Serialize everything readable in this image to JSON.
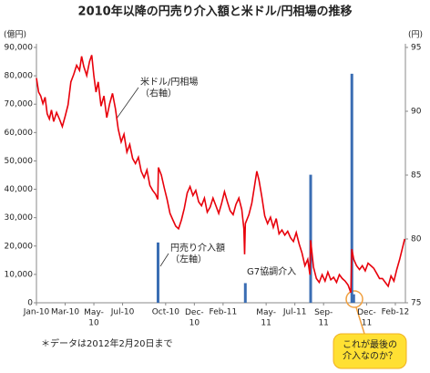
{
  "chart_data": {
    "type": "combo",
    "title": "2010年以降の円売り介入額と米ドル/円相場の推移",
    "y_label": "(億円)",
    "y2_label": "(円)",
    "xlim": [
      0,
      25.7
    ],
    "xticks": [
      {
        "value": 0,
        "label": "Jan-10"
      },
      {
        "value": 2,
        "label": "Mar-10"
      },
      {
        "value": 4,
        "label": "May-\n10"
      },
      {
        "value": 6,
        "label": "Jul-10"
      },
      {
        "value": 9,
        "label": "Oct-10"
      },
      {
        "value": 11,
        "label": "Dec-\n10"
      },
      {
        "value": 13,
        "label": "Feb-11"
      },
      {
        "value": 16,
        "label": "May-\n11"
      },
      {
        "value": 18,
        "label": "Jul-11"
      },
      {
        "value": 20,
        "label": "Sep-\n11"
      },
      {
        "value": 23,
        "label": "Dec-\n11"
      },
      {
        "value": 25,
        "label": "Feb-12"
      }
    ],
    "ylim": [
      0,
      90000
    ],
    "yticks": [
      0,
      {
        "value": 10000,
        "label": "10,000"
      },
      {
        "value": 20000,
        "label": "20,000"
      },
      {
        "value": 30000,
        "label": "30,000"
      },
      {
        "value": 40000,
        "label": "40,000"
      },
      {
        "value": 50000,
        "label": "50,000"
      },
      {
        "value": 60000,
        "label": "60,000"
      },
      {
        "value": 70000,
        "label": "70,000"
      },
      {
        "value": 80000,
        "label": "80,000"
      },
      {
        "value": 90000,
        "label": "90,000"
      }
    ],
    "y2lim": [
      75,
      95
    ],
    "y2ticks": [
      75,
      80,
      85,
      90,
      95
    ],
    "series": [
      {
        "type": "bar",
        "color": "#3a6db3",
        "x": [
          8.47,
          14.55,
          19.1,
          21.97,
          22.1
        ],
        "values": [
          21249,
          6925,
          45129,
          80722,
          3000
        ]
      },
      {
        "type": "line",
        "axis": "y2",
        "color": "#e8000b",
        "x": [
          0,
          0.15,
          0.3,
          0.45,
          0.6,
          0.75,
          0.9,
          1.05,
          1.2,
          1.4,
          1.6,
          1.8,
          2.0,
          2.2,
          2.4,
          2.6,
          2.8,
          3.0,
          3.15,
          3.3,
          3.5,
          3.7,
          3.85,
          4.0,
          4.15,
          4.3,
          4.5,
          4.7,
          4.9,
          5.1,
          5.3,
          5.5,
          5.7,
          5.9,
          6.1,
          6.3,
          6.5,
          6.7,
          6.9,
          7.1,
          7.3,
          7.5,
          7.7,
          7.9,
          8.1,
          8.3,
          8.45,
          8.5,
          8.7,
          8.9,
          9.1,
          9.3,
          9.5,
          9.7,
          9.9,
          10.1,
          10.3,
          10.5,
          10.7,
          10.9,
          11.1,
          11.3,
          11.5,
          11.7,
          11.9,
          12.1,
          12.3,
          12.5,
          12.7,
          12.9,
          13.1,
          13.3,
          13.5,
          13.7,
          13.9,
          14.1,
          14.3,
          14.45,
          14.5,
          14.55,
          14.8,
          15.0,
          15.2,
          15.35,
          15.5,
          15.7,
          15.9,
          16.1,
          16.3,
          16.5,
          16.7,
          16.9,
          17.1,
          17.3,
          17.5,
          17.7,
          17.9,
          18.1,
          18.3,
          18.5,
          18.7,
          18.9,
          19.05,
          19.1,
          19.3,
          19.5,
          19.7,
          19.9,
          20.1,
          20.3,
          20.5,
          20.7,
          20.9,
          21.1,
          21.3,
          21.5,
          21.7,
          21.9,
          21.97,
          22.1,
          22.3,
          22.5,
          22.7,
          22.9,
          23.1,
          23.3,
          23.5,
          23.7,
          23.9,
          24.1,
          24.3,
          24.5,
          24.7,
          24.9,
          25.1,
          25.3,
          25.5,
          25.65
        ],
        "values": [
          92.6,
          91.5,
          91.2,
          90.6,
          91.1,
          89.8,
          89.4,
          90.1,
          89.2,
          89.9,
          89.4,
          88.8,
          89.6,
          90.5,
          92.3,
          92.9,
          93.6,
          93.2,
          94.3,
          93.5,
          92.8,
          93.9,
          94.4,
          92.8,
          91.5,
          92.3,
          90.4,
          91.2,
          89.5,
          90.6,
          91.4,
          90.2,
          88.6,
          87.6,
          88.2,
          86.8,
          87.4,
          86.3,
          85.9,
          86.4,
          85.3,
          84.8,
          85.4,
          84.2,
          83.8,
          83.5,
          83.1,
          85.6,
          85.0,
          84.0,
          83.1,
          82.0,
          81.5,
          81.0,
          80.8,
          81.5,
          82.4,
          83.6,
          84.1,
          83.4,
          83.8,
          82.9,
          82.6,
          83.2,
          82.1,
          82.5,
          83.2,
          82.6,
          82.0,
          82.8,
          83.7,
          82.9,
          82.2,
          81.9,
          82.7,
          83.2,
          82.3,
          80.8,
          78.8,
          81.2,
          81.9,
          82.8,
          84.2,
          85.3,
          84.6,
          83.3,
          81.8,
          81.2,
          81.7,
          80.9,
          81.6,
          80.4,
          80.7,
          80.3,
          80.6,
          80.1,
          79.8,
          80.5,
          79.6,
          78.9,
          77.9,
          78.4,
          77.2,
          79.9,
          77.8,
          76.9,
          76.6,
          77.2,
          76.7,
          77.4,
          76.8,
          77.0,
          76.6,
          77.2,
          76.9,
          76.7,
          76.4,
          75.8,
          79.2,
          78.4,
          77.9,
          77.6,
          77.9,
          77.5,
          78.1,
          77.9,
          77.7,
          77.3,
          76.9,
          76.9,
          76.6,
          76.3,
          77.1,
          76.7,
          77.6,
          78.4,
          79.3,
          80.0
        ]
      }
    ],
    "annotations": [
      "米ドル/円相場\n（右軸）",
      "円売り介入額\n（左軸）",
      "G7協調介入",
      "＊データは2012年2月20日まで",
      "これが最後の\n介入なのか？"
    ]
  }
}
